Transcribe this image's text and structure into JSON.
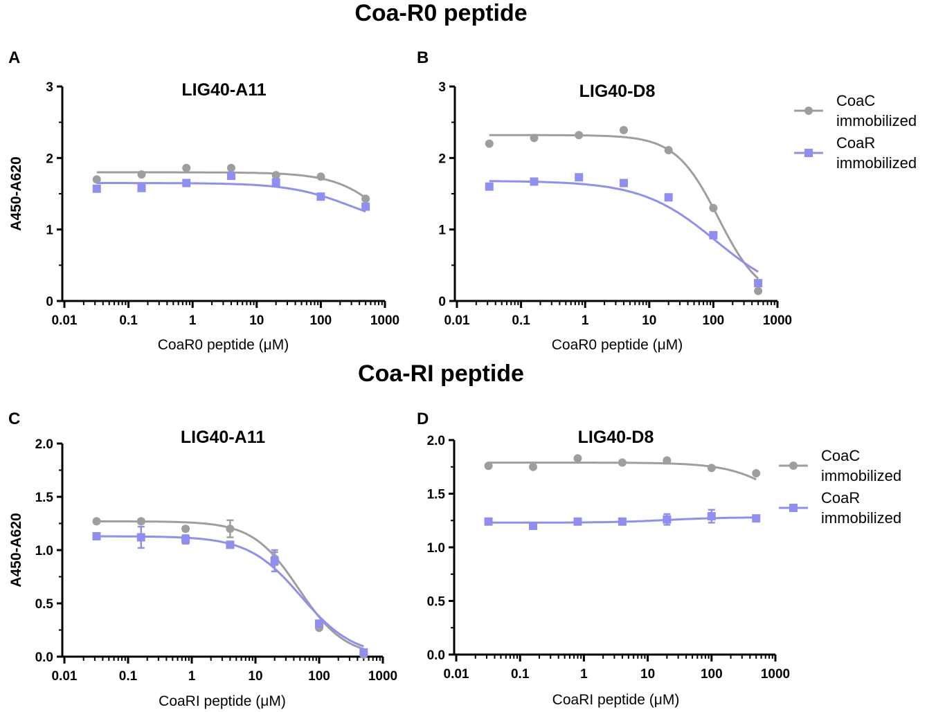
{
  "section_titles": {
    "top": "Coa-R0 peptide",
    "bottom": "Coa-RI peptide"
  },
  "colors": {
    "coac": "#9e9e9e",
    "coar": "#8f8ff2",
    "axis": "#000000"
  },
  "chart_data": [
    {
      "id": "A",
      "panel_label": "A",
      "type": "scatter",
      "title": "LIG40-A11",
      "xlabel": "CoaR0 peptide (μM)",
      "ylabel": "A450-A620",
      "xscale": "log",
      "xlim": [
        0.01,
        1000
      ],
      "ylim": [
        0,
        3
      ],
      "xticks": [
        0.01,
        0.1,
        1,
        10,
        100,
        1000
      ],
      "xtick_labels": [
        "0.01",
        "0.1",
        "1",
        "10",
        "100",
        "1000"
      ],
      "yticks": [
        0,
        1,
        2,
        3
      ],
      "ytick_labels": [
        "0",
        "1",
        "2",
        "3"
      ],
      "legend": null,
      "series": [
        {
          "name": "CoaC immobilized",
          "marker": "circle",
          "x": [
            0.032,
            0.16,
            0.8,
            4,
            20,
            100,
            500
          ],
          "values": [
            1.7,
            1.77,
            1.86,
            1.86,
            1.76,
            1.74,
            1.43
          ],
          "errors": [
            0,
            0,
            0,
            0,
            0,
            0,
            0
          ],
          "fit": {
            "top": 1.8,
            "bottom": 0.0,
            "ic50": 2000,
            "hill": 1.0
          }
        },
        {
          "name": "CoaR immobilized",
          "marker": "square",
          "x": [
            0.032,
            0.16,
            0.8,
            4,
            20,
            100,
            500
          ],
          "values": [
            1.57,
            1.58,
            1.65,
            1.75,
            1.66,
            1.46,
            1.32
          ],
          "errors": [
            0,
            0,
            0,
            0,
            0,
            0,
            0
          ],
          "fit": {
            "top": 1.65,
            "bottom": 1.0,
            "ic50": 300,
            "hill": 0.9
          }
        }
      ]
    },
    {
      "id": "B",
      "panel_label": "B",
      "type": "scatter",
      "title": "LIG40-D8",
      "xlabel": "CoaR0 peptide (μM)",
      "ylabel": "",
      "xscale": "log",
      "xlim": [
        0.01,
        1000
      ],
      "ylim": [
        0,
        3
      ],
      "xticks": [
        0.01,
        0.1,
        1,
        10,
        100,
        1000
      ],
      "xtick_labels": [
        "0.01",
        "0.1",
        "1",
        "10",
        "100",
        "1000"
      ],
      "yticks": [
        0,
        1,
        2,
        3
      ],
      "ytick_labels": [
        "0",
        "1",
        "2",
        "3"
      ],
      "legend": {
        "entries": [
          {
            "line1": "CoaC",
            "line2": "immobilized"
          },
          {
            "line1": "CoaR",
            "line2": "immobilized"
          }
        ]
      },
      "series": [
        {
          "name": "CoaC immobilized",
          "marker": "circle",
          "x": [
            0.032,
            0.16,
            0.8,
            4,
            20,
            100,
            500
          ],
          "values": [
            2.2,
            2.28,
            2.32,
            2.39,
            2.11,
            1.3,
            0.14
          ],
          "errors": [
            0,
            0,
            0,
            0,
            0,
            0,
            0
          ],
          "fit": {
            "top": 2.32,
            "bottom": 0.0,
            "ic50": 120,
            "hill": 1.3
          }
        },
        {
          "name": "CoaR immobilized",
          "marker": "square",
          "x": [
            0.032,
            0.16,
            0.8,
            4,
            20,
            100,
            500
          ],
          "values": [
            1.6,
            1.67,
            1.73,
            1.65,
            1.45,
            0.92,
            0.25
          ],
          "errors": [
            0,
            0,
            0,
            0,
            0,
            0,
            0
          ],
          "fit": {
            "top": 1.68,
            "bottom": 0.0,
            "ic50": 110,
            "hill": 0.75
          }
        }
      ]
    },
    {
      "id": "C",
      "panel_label": "C",
      "type": "scatter",
      "title": "LIG40-A11",
      "xlabel": "CoaRI peptide (μM)",
      "ylabel": "A450-A620",
      "xscale": "log",
      "xlim": [
        0.01,
        1000
      ],
      "ylim": [
        0,
        2
      ],
      "xticks": [
        0.01,
        0.1,
        1,
        10,
        100,
        1000
      ],
      "xtick_labels": [
        "0.01",
        "0.1",
        "1",
        "10",
        "100",
        "1000"
      ],
      "yticks": [
        0,
        0.5,
        1,
        1.5,
        2
      ],
      "ytick_labels": [
        "0.0",
        "0.5",
        "1.0",
        "1.5",
        "2.0"
      ],
      "legend": null,
      "series": [
        {
          "name": "CoaC immobilized",
          "marker": "circle",
          "x": [
            0.032,
            0.16,
            0.8,
            4,
            20,
            100,
            500
          ],
          "values": [
            1.27,
            1.27,
            1.2,
            1.2,
            0.92,
            0.27,
            0.02
          ],
          "errors": [
            0,
            0.02,
            0.02,
            0.08,
            0.06,
            0,
            0
          ],
          "fit": {
            "top": 1.27,
            "bottom": 0.0,
            "ic50": 48,
            "hill": 1.2
          }
        },
        {
          "name": "CoaR immobilized",
          "marker": "square",
          "x": [
            0.032,
            0.16,
            0.8,
            4,
            20,
            100,
            500
          ],
          "values": [
            1.13,
            1.12,
            1.1,
            1.05,
            0.9,
            0.31,
            0.04
          ],
          "errors": [
            0,
            0.1,
            0.04,
            0.03,
            0.1,
            0,
            0
          ],
          "fit": {
            "top": 1.13,
            "bottom": 0.0,
            "ic50": 52,
            "hill": 1.05
          }
        }
      ]
    },
    {
      "id": "D",
      "panel_label": "D",
      "type": "scatter",
      "title": "LIG40-D8",
      "xlabel": "CoaRI peptide (μM)",
      "ylabel": "",
      "xscale": "log",
      "xlim": [
        0.01,
        1000
      ],
      "ylim": [
        0,
        2
      ],
      "xticks": [
        0.01,
        0.1,
        1,
        10,
        100,
        1000
      ],
      "xtick_labels": [
        "0.01",
        "0.1",
        "1",
        "10",
        "100",
        "1000"
      ],
      "yticks": [
        0,
        0.5,
        1,
        1.5,
        2
      ],
      "ytick_labels": [
        "0.0",
        "0.5",
        "1.0",
        "1.5",
        "2.0"
      ],
      "legend": {
        "entries": [
          {
            "line1": "CoaC",
            "line2": "immobilized"
          },
          {
            "line1": "CoaR",
            "line2": "immobilized"
          }
        ]
      },
      "series": [
        {
          "name": "CoaC immobilized",
          "marker": "circle",
          "x": [
            0.032,
            0.16,
            0.8,
            4,
            20,
            100,
            500
          ],
          "values": [
            1.76,
            1.75,
            1.83,
            1.79,
            1.81,
            1.74,
            1.69
          ],
          "errors": [
            0,
            0,
            0,
            0,
            0,
            0,
            0
          ],
          "fit": {
            "top": 1.79,
            "bottom": 1.0,
            "ic50": 2000,
            "hill": 1.0
          }
        },
        {
          "name": "CoaR immobilized",
          "marker": "square",
          "x": [
            0.032,
            0.16,
            0.8,
            4,
            20,
            100,
            500
          ],
          "values": [
            1.24,
            1.2,
            1.24,
            1.24,
            1.26,
            1.29,
            1.27
          ],
          "errors": [
            0,
            0,
            0,
            0.02,
            0.05,
            0.06,
            0
          ],
          "fit": {
            "top": 1.23,
            "bottom": 1.28,
            "ic50": 20,
            "hill": 1.0
          }
        }
      ]
    }
  ]
}
